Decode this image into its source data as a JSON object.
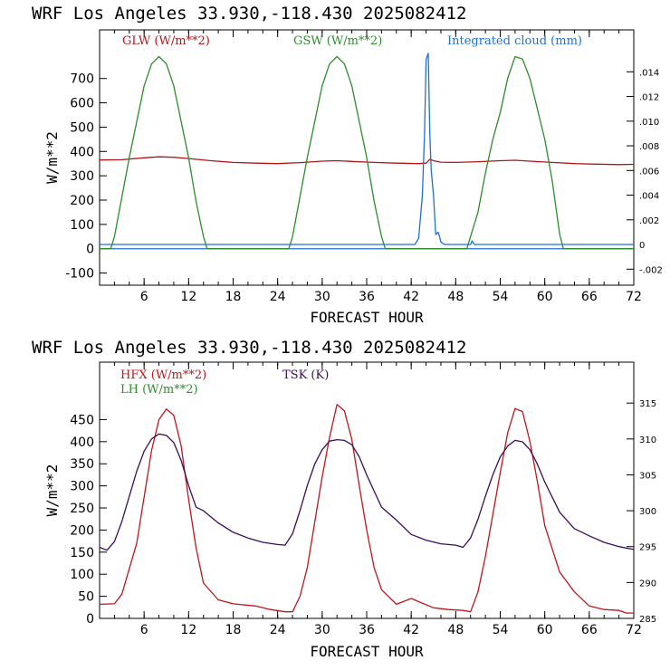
{
  "chart_data": [
    {
      "type": "line",
      "title": "WRF  Los Angeles   33.930,-118.430  2025082412",
      "xlabel": "FORECAST HOUR",
      "ylabel": "W/m**2",
      "xlim": [
        0,
        72
      ],
      "ylim": [
        -150,
        900
      ],
      "xticks": [
        6,
        12,
        18,
        24,
        30,
        36,
        42,
        48,
        54,
        60,
        66,
        72
      ],
      "yticks": [
        -100,
        0,
        100,
        200,
        300,
        400,
        500,
        600,
        700
      ],
      "y2lim": [
        -0.0033,
        0.0174
      ],
      "y2ticks": [
        -0.002,
        0,
        0.002,
        0.004,
        0.006,
        0.008,
        0.01,
        0.012,
        0.014
      ],
      "y2ticklabels": [
        "-.002",
        "0",
        ".002",
        ".004",
        ".006",
        ".008",
        ".010",
        ".012",
        ".014"
      ],
      "grid": false,
      "legend": "top",
      "series": [
        {
          "name": "GLW (W/m**2)",
          "color": "#b0161c",
          "axis": "left",
          "x": [
            0,
            3,
            6,
            8,
            10,
            12,
            15,
            18,
            21,
            24,
            27,
            30,
            32,
            34,
            37,
            40,
            43,
            44,
            44.5,
            45,
            46,
            48,
            51,
            54,
            56,
            58,
            61,
            64,
            67,
            70,
            72
          ],
          "y": [
            365,
            366,
            374,
            378,
            376,
            371,
            362,
            355,
            352,
            350,
            354,
            360,
            362,
            359,
            355,
            352,
            350,
            352,
            368,
            362,
            356,
            355,
            358,
            362,
            364,
            360,
            355,
            350,
            348,
            346,
            347
          ]
        },
        {
          "name": "GSW (W/m**2)",
          "color": "#2e8b2e",
          "axis": "left",
          "x": [
            0,
            1.5,
            2,
            4,
            6,
            7,
            8,
            9,
            10,
            12,
            13,
            14,
            14.5,
            24,
            25.5,
            26,
            28,
            30,
            31,
            32,
            33,
            34,
            36,
            37,
            38,
            38.5,
            48,
            49.5,
            50,
            51,
            51.3,
            52,
            53,
            54,
            55,
            56,
            57,
            58,
            60,
            61,
            62,
            62.5,
            72
          ],
          "y": [
            0,
            0,
            50,
            375,
            670,
            760,
            790,
            760,
            670,
            375,
            195,
            50,
            0,
            0,
            0,
            50,
            375,
            670,
            760,
            790,
            760,
            670,
            375,
            195,
            50,
            0,
            0,
            0,
            50,
            150,
            200,
            310,
            450,
            560,
            700,
            790,
            780,
            700,
            450,
            280,
            60,
            0,
            0
          ]
        },
        {
          "name": "Integrated cloud (mm)",
          "color": "#1f6fd8",
          "axis": "right",
          "x": [
            0,
            42.5,
            43,
            43.5,
            43.8,
            44,
            44.3,
            44.5,
            44.7,
            45,
            45.3,
            45.6,
            45.8,
            46,
            46.5,
            50,
            50.2,
            50.5,
            72
          ],
          "y": [
            0,
            0,
            0.0005,
            0.004,
            0.009,
            0.015,
            0.0155,
            0.009,
            0.006,
            0.004,
            0.0008,
            0.001,
            0.0007,
            0.0002,
            0,
            0,
            0.0003,
            0,
            0
          ]
        }
      ]
    },
    {
      "type": "line",
      "title": "WRF  Los Angeles   33.930,-118.430  2025082412",
      "xlabel": "FORECAST HOUR",
      "ylabel": "W/m**2",
      "xlim": [
        0,
        72
      ],
      "ylim": [
        0,
        580
      ],
      "xticks": [
        6,
        12,
        18,
        24,
        30,
        36,
        42,
        48,
        54,
        60,
        66,
        72
      ],
      "yticks": [
        0,
        50,
        100,
        150,
        200,
        250,
        300,
        350,
        400,
        450
      ],
      "y2lim": [
        285,
        320.7
      ],
      "y2ticks": [
        285,
        290,
        295,
        300,
        305,
        310,
        315
      ],
      "y2ticklabels": [
        "285",
        "290",
        "295",
        "300",
        "305",
        "310",
        "315"
      ],
      "grid": false,
      "legend": "top-left",
      "series": [
        {
          "name": "HFX (W/m**2)",
          "color": "#c0161c",
          "axis": "left",
          "x": [
            0,
            2,
            3,
            5,
            7,
            8,
            9,
            10,
            11,
            12,
            13,
            14,
            16,
            18,
            21,
            23,
            25,
            26,
            27,
            28,
            30,
            31,
            32,
            33,
            34,
            35,
            36,
            37,
            38,
            40,
            42,
            43,
            45,
            47,
            49,
            50,
            51,
            52,
            54,
            55,
            56,
            57,
            58,
            59,
            60,
            62,
            64,
            66,
            68,
            70,
            71,
            72
          ],
          "y": [
            32,
            33,
            55,
            170,
            380,
            450,
            474,
            460,
            390,
            270,
            160,
            80,
            42,
            33,
            28,
            20,
            15,
            15,
            50,
            115,
            320,
            410,
            484,
            470,
            405,
            300,
            200,
            115,
            65,
            32,
            45,
            38,
            24,
            20,
            18,
            15,
            60,
            140,
            330,
            420,
            475,
            468,
            400,
            310,
            210,
            105,
            60,
            28,
            20,
            18,
            12,
            12
          ]
        },
        {
          "name": "TSK (K)",
          "color": "#3a0d5c",
          "axis": "right",
          "x": [
            0,
            1,
            2,
            3,
            4,
            5,
            6,
            7,
            8,
            9,
            10,
            11,
            12,
            13,
            14,
            16,
            18,
            20,
            22,
            24,
            25,
            26,
            27,
            28,
            29,
            30,
            31,
            32,
            33,
            34,
            35,
            36,
            38,
            40,
            42,
            44,
            46,
            48,
            49,
            50,
            51,
            52,
            53,
            54,
            55,
            56,
            57,
            58,
            59,
            60,
            62,
            64,
            66,
            68,
            70,
            72
          ],
          "y": [
            294.9,
            294.5,
            295.7,
            298.5,
            302,
            305.5,
            308.3,
            310,
            310.7,
            310.5,
            309.5,
            307,
            303.5,
            300.5,
            300,
            298.3,
            297,
            296.2,
            295.6,
            295.3,
            295.2,
            296.8,
            300,
            303.5,
            306.5,
            308.5,
            309.7,
            309.9,
            309.8,
            309.2,
            307.5,
            305,
            300.5,
            298.7,
            296.7,
            295.9,
            295.4,
            295.2,
            294.9,
            296.2,
            298.8,
            302,
            305,
            307.5,
            309,
            309.8,
            309.6,
            308.5,
            306.5,
            304,
            299.8,
            297.5,
            296.5,
            295.6,
            295,
            294.6
          ]
        }
      ]
    }
  ]
}
